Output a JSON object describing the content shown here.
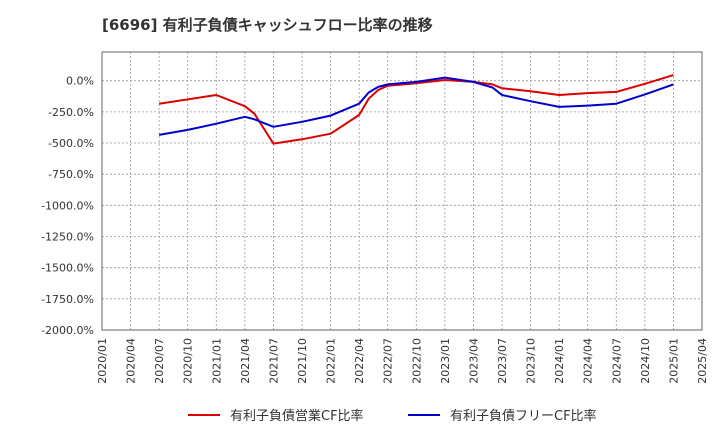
{
  "chart_data": {
    "type": "line",
    "title": "[6696]  有利子負債キャッシュフロー比率の推移",
    "xlabel": "",
    "ylabel": "",
    "x_ticks": [
      "2020/01",
      "2020/04",
      "2020/07",
      "2020/10",
      "2021/01",
      "2021/04",
      "2021/07",
      "2021/10",
      "2022/01",
      "2022/04",
      "2022/07",
      "2022/10",
      "2023/01",
      "2023/04",
      "2023/07",
      "2023/10",
      "2024/01",
      "2024/04",
      "2024/07",
      "2024/10",
      "2025/01",
      "2025/04"
    ],
    "y_ticks": [
      0,
      -250,
      -500,
      -750,
      -1000,
      -1250,
      -1500,
      -1750,
      -2000
    ],
    "y_tick_labels": [
      "0.0%",
      "-250.0%",
      "-500.0%",
      "-750.0%",
      "-1000.0%",
      "-1250.0%",
      "-1500.0%",
      "-1750.0%",
      "-2000.0%"
    ],
    "ylim": [
      -2000,
      230
    ],
    "xlim": [
      "2020/01",
      "2025/04"
    ],
    "grid": true,
    "legend_position": "bottom",
    "series": [
      {
        "name": "有利子負債営業CF比率",
        "color": "#dd0000",
        "points": [
          [
            "2020/07",
            -185
          ],
          [
            "2020/10",
            -150
          ],
          [
            "2021/01",
            -115
          ],
          [
            "2021/04",
            -205
          ],
          [
            "2021/05",
            -265
          ],
          [
            "2021/07",
            -505
          ],
          [
            "2021/10",
            -470
          ],
          [
            "2022/01",
            -425
          ],
          [
            "2022/04",
            -275
          ],
          [
            "2022/05",
            -145
          ],
          [
            "2022/06",
            -75
          ],
          [
            "2022/07",
            -40
          ],
          [
            "2022/10",
            -20
          ],
          [
            "2023/01",
            5
          ],
          [
            "2023/04",
            -10
          ],
          [
            "2023/06",
            -30
          ],
          [
            "2023/07",
            -60
          ],
          [
            "2023/10",
            -85
          ],
          [
            "2024/01",
            -115
          ],
          [
            "2024/04",
            -100
          ],
          [
            "2024/07",
            -90
          ],
          [
            "2024/10",
            -25
          ],
          [
            "2025/01",
            45
          ]
        ]
      },
      {
        "name": "有利子負債フリーCF比率",
        "color": "#0000cc",
        "points": [
          [
            "2020/07",
            -435
          ],
          [
            "2020/10",
            -395
          ],
          [
            "2021/01",
            -345
          ],
          [
            "2021/04",
            -290
          ],
          [
            "2021/05",
            -310
          ],
          [
            "2021/07",
            -370
          ],
          [
            "2021/10",
            -330
          ],
          [
            "2022/01",
            -280
          ],
          [
            "2022/04",
            -185
          ],
          [
            "2022/05",
            -95
          ],
          [
            "2022/06",
            -50
          ],
          [
            "2022/07",
            -30
          ],
          [
            "2022/10",
            -10
          ],
          [
            "2023/01",
            25
          ],
          [
            "2023/04",
            -10
          ],
          [
            "2023/06",
            -55
          ],
          [
            "2023/07",
            -115
          ],
          [
            "2023/10",
            -165
          ],
          [
            "2024/01",
            -210
          ],
          [
            "2024/04",
            -200
          ],
          [
            "2024/07",
            -185
          ],
          [
            "2024/10",
            -110
          ],
          [
            "2025/01",
            -30
          ]
        ]
      }
    ]
  }
}
